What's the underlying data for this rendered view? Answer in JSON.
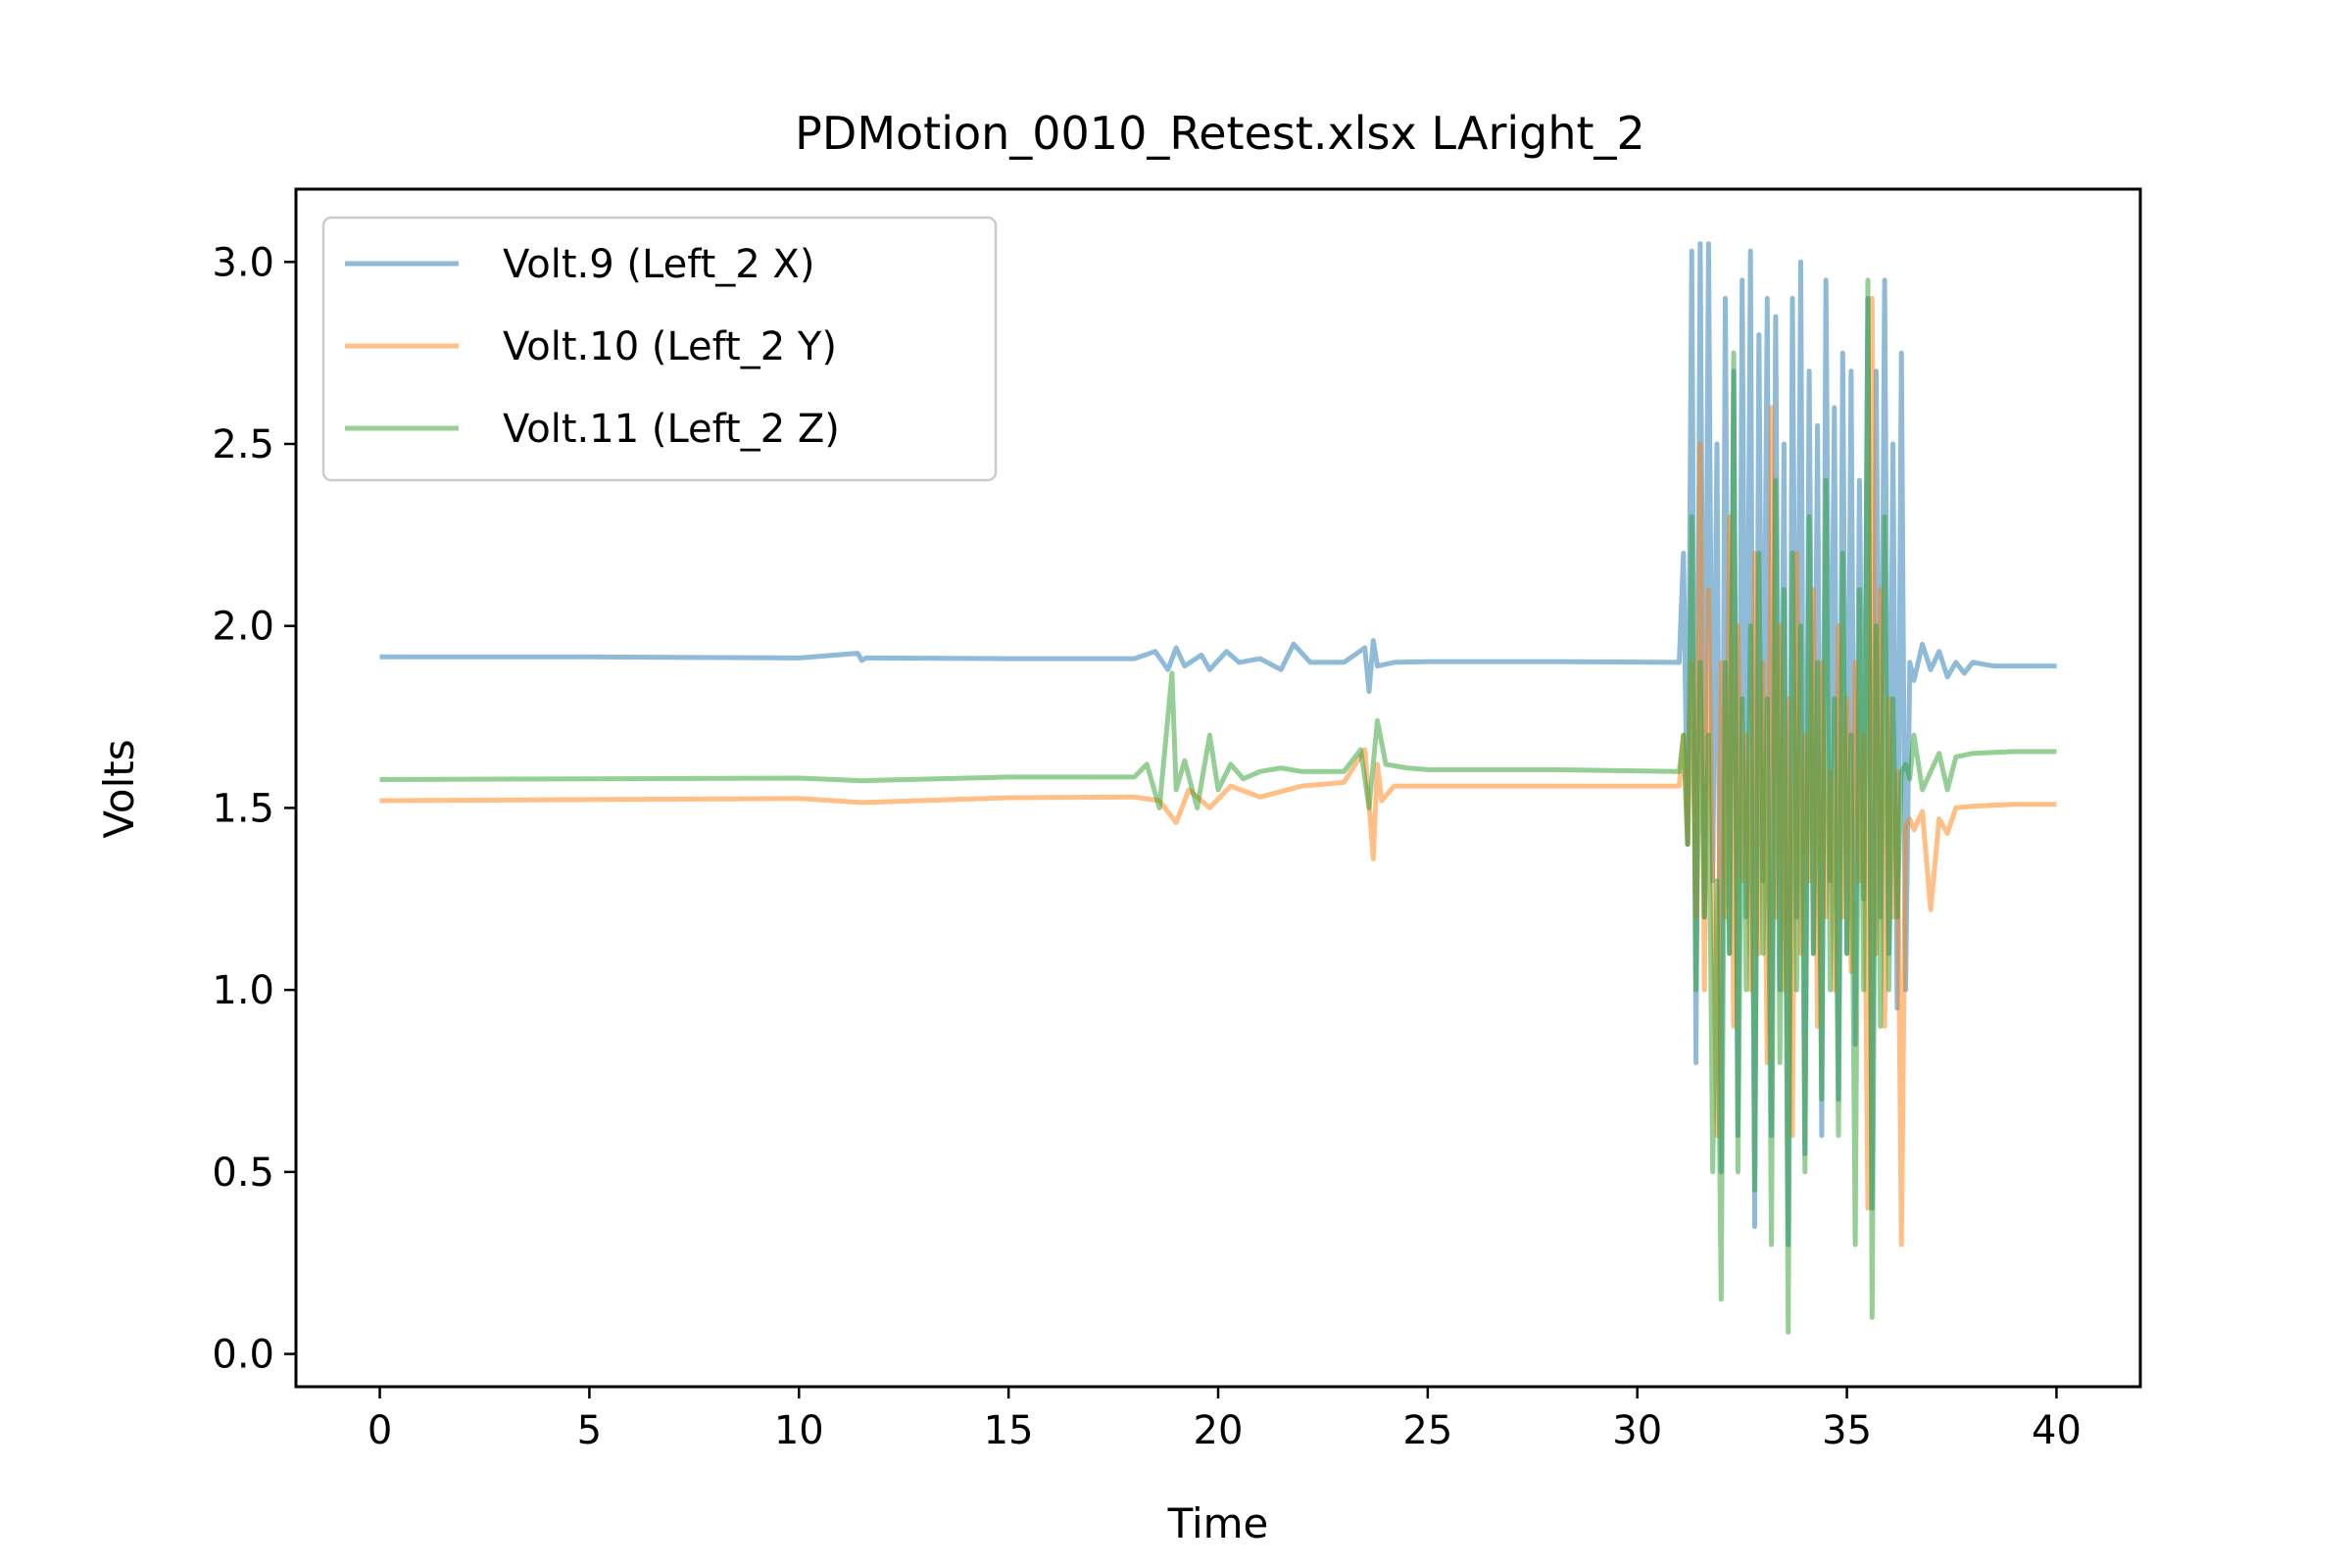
{
  "chart_data": {
    "type": "line",
    "title": "PDMotion_0010_Retest.xlsx LAright_2",
    "xlabel": "Time",
    "ylabel": "Volts",
    "xlim": [
      -2,
      42
    ],
    "ylim": [
      -0.09,
      3.2
    ],
    "xticks": [
      0,
      5,
      10,
      15,
      20,
      25,
      30,
      35,
      40
    ],
    "yticks": [
      0.0,
      0.5,
      1.0,
      1.5,
      2.0,
      2.5,
      3.0
    ],
    "xtick_labels": [
      "0",
      "5",
      "10",
      "15",
      "20",
      "25",
      "30",
      "35",
      "40"
    ],
    "ytick_labels": [
      "0.0",
      "0.5",
      "1.0",
      "1.5",
      "2.0",
      "2.5",
      "3.0"
    ],
    "grid": false,
    "legend_position": "top-left",
    "series": [
      {
        "name": "Volt.9 (Left_2 X)",
        "color": "#1f77b4",
        "x": [
          0,
          5,
          10,
          11.4,
          11.5,
          11.6,
          15,
          18.0,
          18.5,
          18.8,
          19.0,
          19.2,
          19.6,
          19.8,
          20.2,
          20.5,
          21.0,
          21.5,
          21.8,
          22.2,
          23.0,
          23.5,
          23.6,
          23.7,
          23.8,
          24.2,
          25,
          28,
          31.0,
          31.1,
          31.2,
          31.3,
          31.4,
          31.5,
          31.6,
          31.7,
          31.8,
          31.9,
          32.0,
          32.1,
          32.2,
          32.3,
          32.4,
          32.5,
          32.6,
          32.7,
          32.8,
          32.9,
          33.0,
          33.1,
          33.2,
          33.3,
          33.4,
          33.5,
          33.6,
          33.7,
          33.8,
          33.9,
          34.0,
          34.1,
          34.2,
          34.3,
          34.4,
          34.5,
          34.6,
          34.7,
          34.8,
          34.9,
          35.0,
          35.1,
          35.2,
          35.3,
          35.4,
          35.5,
          35.6,
          35.7,
          35.8,
          35.9,
          36.0,
          36.1,
          36.2,
          36.3,
          36.4,
          36.5,
          36.6,
          36.8,
          37.0,
          37.2,
          37.4,
          37.6,
          37.8,
          38.0,
          38.5,
          39,
          40
        ],
        "y": [
          1.915,
          1.915,
          1.912,
          1.925,
          1.905,
          1.912,
          1.91,
          1.91,
          1.93,
          1.88,
          1.94,
          1.89,
          1.92,
          1.88,
          1.93,
          1.9,
          1.91,
          1.88,
          1.95,
          1.9,
          1.9,
          1.94,
          1.82,
          1.96,
          1.89,
          1.9,
          1.902,
          1.902,
          1.9,
          2.2,
          1.4,
          3.03,
          0.8,
          3.05,
          1.2,
          3.05,
          1.3,
          2.5,
          0.5,
          2.9,
          1.1,
          2.7,
          0.6,
          2.95,
          1.2,
          3.03,
          0.35,
          2.8,
          1.3,
          2.9,
          0.6,
          2.85,
          1.0,
          2.5,
          0.3,
          2.9,
          1.2,
          3.0,
          0.55,
          2.7,
          1.1,
          2.55,
          0.6,
          2.95,
          1.3,
          2.6,
          0.7,
          2.75,
          1.1,
          2.7,
          0.85,
          2.4,
          1.25,
          2.9,
          0.4,
          2.7,
          1.2,
          2.95,
          1.1,
          2.5,
          0.95,
          2.75,
          1.0,
          1.9,
          1.85,
          1.95,
          1.88,
          1.93,
          1.86,
          1.9,
          1.87,
          1.9,
          1.89,
          1.89,
          1.89
        ]
      },
      {
        "name": "Volt.10 (Left_2 Y)",
        "color": "#ff7f0e",
        "x": [
          0,
          5,
          10,
          11.5,
          15,
          18.0,
          18.6,
          19.0,
          19.3,
          19.8,
          20.3,
          21.0,
          22.0,
          23.0,
          23.5,
          23.7,
          23.8,
          23.9,
          24.2,
          25,
          28,
          31.0,
          31.1,
          31.2,
          31.3,
          31.4,
          31.5,
          31.6,
          31.7,
          31.8,
          31.9,
          32.0,
          32.1,
          32.2,
          32.3,
          32.4,
          32.5,
          32.6,
          32.7,
          32.8,
          32.9,
          33.0,
          33.1,
          33.2,
          33.3,
          33.4,
          33.5,
          33.6,
          33.7,
          33.8,
          33.9,
          34.0,
          34.1,
          34.2,
          34.3,
          34.4,
          34.5,
          34.6,
          34.7,
          34.8,
          34.9,
          35.0,
          35.1,
          35.2,
          35.3,
          35.4,
          35.5,
          35.6,
          35.7,
          35.8,
          35.9,
          36.0,
          36.1,
          36.2,
          36.3,
          36.4,
          36.5,
          36.6,
          36.8,
          37.0,
          37.2,
          37.4,
          37.6,
          38.0,
          39,
          40
        ],
        "y": [
          1.52,
          1.523,
          1.526,
          1.515,
          1.528,
          1.53,
          1.52,
          1.46,
          1.55,
          1.5,
          1.56,
          1.53,
          1.56,
          1.57,
          1.66,
          1.36,
          1.62,
          1.52,
          1.56,
          1.56,
          1.56,
          1.56,
          1.7,
          1.4,
          1.9,
          1.2,
          2.5,
          1.0,
          2.1,
          1.3,
          0.6,
          1.9,
          1.2,
          2.3,
          0.9,
          2.0,
          1.3,
          1.7,
          1.0,
          2.2,
          1.1,
          1.9,
          0.8,
          2.6,
          1.2,
          2.0,
          1.0,
          1.8,
          0.6,
          2.2,
          1.1,
          1.7,
          1.3,
          2.1,
          0.9,
          1.9,
          1.2,
          1.6,
          1.0,
          2.0,
          1.2,
          1.8,
          1.05,
          1.9,
          1.3,
          1.7,
          0.4,
          2.9,
          1.1,
          2.1,
          0.9,
          1.8,
          1.2,
          1.6,
          0.3,
          1.45,
          1.47,
          1.44,
          1.49,
          1.22,
          1.47,
          1.43,
          1.5,
          1.505,
          1.51,
          1.51
        ]
      },
      {
        "name": "Volt.11 (Left_2 Z)",
        "color": "#2ca02c",
        "x": [
          0,
          5,
          10,
          11.5,
          15,
          18.0,
          18.3,
          18.6,
          18.9,
          19.0,
          19.2,
          19.5,
          19.8,
          20.0,
          20.3,
          20.6,
          21.0,
          21.5,
          22.0,
          23.0,
          23.4,
          23.6,
          23.8,
          24.0,
          24.5,
          25,
          28,
          31.0,
          31.1,
          31.2,
          31.3,
          31.4,
          31.5,
          31.6,
          31.7,
          31.8,
          31.9,
          32.0,
          32.1,
          32.2,
          32.3,
          32.4,
          32.5,
          32.6,
          32.7,
          32.8,
          32.9,
          33.0,
          33.1,
          33.2,
          33.3,
          33.4,
          33.5,
          33.6,
          33.7,
          33.8,
          33.9,
          34.0,
          34.1,
          34.2,
          34.3,
          34.4,
          34.5,
          34.6,
          34.7,
          34.8,
          34.9,
          35.0,
          35.1,
          35.2,
          35.3,
          35.4,
          35.5,
          35.6,
          35.7,
          35.8,
          35.9,
          36.0,
          36.1,
          36.2,
          36.3,
          36.4,
          36.5,
          36.6,
          36.8,
          37.0,
          37.2,
          37.4,
          37.6,
          38.0,
          39,
          40
        ],
        "y": [
          1.578,
          1.58,
          1.582,
          1.575,
          1.585,
          1.585,
          1.62,
          1.5,
          1.87,
          1.55,
          1.63,
          1.5,
          1.7,
          1.55,
          1.62,
          1.58,
          1.6,
          1.61,
          1.6,
          1.6,
          1.66,
          1.5,
          1.74,
          1.62,
          1.61,
          1.605,
          1.605,
          1.6,
          1.7,
          1.4,
          2.3,
          1.0,
          1.9,
          1.2,
          1.7,
          0.5,
          1.3,
          0.15,
          1.9,
          1.1,
          2.75,
          0.5,
          1.8,
          1.0,
          2.0,
          0.45,
          2.2,
          1.1,
          1.8,
          0.3,
          2.4,
          0.8,
          2.1,
          0.06,
          2.2,
          1.0,
          2.0,
          0.5,
          2.3,
          1.1,
          1.9,
          0.7,
          2.4,
          1.0,
          1.8,
          0.6,
          2.2,
          1.1,
          1.7,
          0.3,
          2.1,
          1.0,
          2.95,
          0.1,
          2.0,
          0.9,
          2.3,
          1.0,
          1.8,
          1.2,
          1.6,
          1.62,
          1.58,
          1.7,
          1.55,
          1.6,
          1.65,
          1.55,
          1.64,
          1.65,
          1.655,
          1.655
        ]
      }
    ]
  }
}
